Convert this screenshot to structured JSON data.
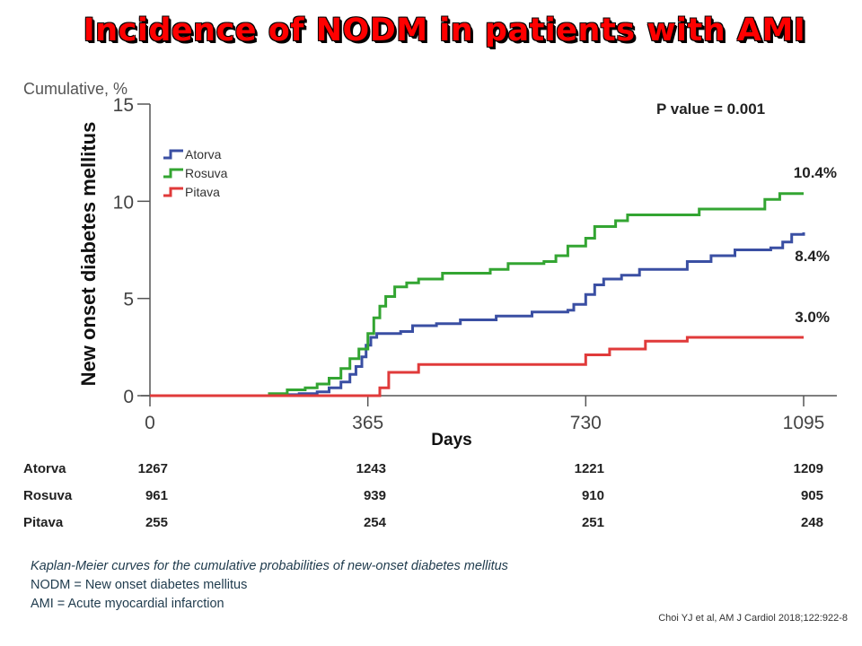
{
  "title": "Incidence of NODM in patients with AMI",
  "chart_data": {
    "type": "line",
    "step": true,
    "ytitle": "Cumulative, %",
    "ylabel": "New onset diabetes mellitus",
    "xlabel": "Days",
    "xlim": [
      0,
      1095
    ],
    "ylim": [
      0,
      15
    ],
    "xticks": [
      0,
      365,
      730,
      1095
    ],
    "yticks": [
      0,
      5,
      10,
      15
    ],
    "grid": false,
    "legend_position": "top-left",
    "annotation": "P value = 0.001",
    "series": [
      {
        "name": "Atorva",
        "color": "#3a4fa3",
        "end_label": "8.4%",
        "points": [
          [
            0,
            0
          ],
          [
            130,
            0
          ],
          [
            200,
            0.05
          ],
          [
            250,
            0.1
          ],
          [
            280,
            0.2
          ],
          [
            300,
            0.4
          ],
          [
            320,
            0.7
          ],
          [
            335,
            1.1
          ],
          [
            345,
            1.5
          ],
          [
            355,
            2.0
          ],
          [
            362,
            2.6
          ],
          [
            370,
            3.0
          ],
          [
            380,
            3.2
          ],
          [
            420,
            3.3
          ],
          [
            440,
            3.6
          ],
          [
            480,
            3.7
          ],
          [
            520,
            3.9
          ],
          [
            580,
            4.1
          ],
          [
            640,
            4.3
          ],
          [
            700,
            4.4
          ],
          [
            710,
            4.7
          ],
          [
            730,
            5.2
          ],
          [
            745,
            5.7
          ],
          [
            760,
            6.0
          ],
          [
            790,
            6.2
          ],
          [
            820,
            6.5
          ],
          [
            900,
            6.9
          ],
          [
            940,
            7.2
          ],
          [
            980,
            7.5
          ],
          [
            1040,
            7.6
          ],
          [
            1060,
            7.9
          ],
          [
            1075,
            8.3
          ],
          [
            1095,
            8.4
          ]
        ]
      },
      {
        "name": "Rosuva",
        "color": "#33a532",
        "end_label": "10.4%",
        "points": [
          [
            0,
            0
          ],
          [
            200,
            0.1
          ],
          [
            230,
            0.3
          ],
          [
            260,
            0.4
          ],
          [
            280,
            0.6
          ],
          [
            300,
            0.9
          ],
          [
            320,
            1.4
          ],
          [
            335,
            1.9
          ],
          [
            350,
            2.4
          ],
          [
            365,
            3.2
          ],
          [
            375,
            4.0
          ],
          [
            385,
            4.6
          ],
          [
            395,
            5.1
          ],
          [
            410,
            5.6
          ],
          [
            430,
            5.8
          ],
          [
            450,
            6.0
          ],
          [
            490,
            6.3
          ],
          [
            570,
            6.5
          ],
          [
            600,
            6.8
          ],
          [
            660,
            6.9
          ],
          [
            680,
            7.2
          ],
          [
            700,
            7.7
          ],
          [
            730,
            8.1
          ],
          [
            745,
            8.7
          ],
          [
            780,
            9.0
          ],
          [
            800,
            9.3
          ],
          [
            920,
            9.6
          ],
          [
            1030,
            10.1
          ],
          [
            1055,
            10.4
          ],
          [
            1095,
            10.4
          ]
        ]
      },
      {
        "name": "Pitava",
        "color": "#e03a3a",
        "end_label": "3.0%",
        "points": [
          [
            0,
            0
          ],
          [
            365,
            0
          ],
          [
            385,
            0.4
          ],
          [
            400,
            1.2
          ],
          [
            445,
            1.2
          ],
          [
            450,
            1.6
          ],
          [
            560,
            1.6
          ],
          [
            700,
            1.6
          ],
          [
            730,
            2.1
          ],
          [
            770,
            2.4
          ],
          [
            830,
            2.8
          ],
          [
            900,
            3.0
          ],
          [
            1095,
            3.0
          ]
        ]
      }
    ],
    "risk_table": {
      "timepoints": [
        0,
        365,
        730,
        1095
      ],
      "rows": [
        {
          "name": "Atorva",
          "values": [
            "1267",
            "1243",
            "1221",
            "1209"
          ]
        },
        {
          "name": "Rosuva",
          "values": [
            "961",
            "939",
            "910",
            "905"
          ]
        },
        {
          "name": "Pitava",
          "values": [
            "255",
            "254",
            "251",
            "248"
          ]
        }
      ]
    }
  },
  "caption": {
    "line1": "Kaplan-Meier curves for the cumulative probabilities of new-onset diabetes mellitus",
    "line2": "NODM = New onset diabetes mellitus",
    "line3": "AMI = Acute myocardial infarction"
  },
  "citation": "Choi YJ et al, AM J Cardiol  2018;122:922-8"
}
